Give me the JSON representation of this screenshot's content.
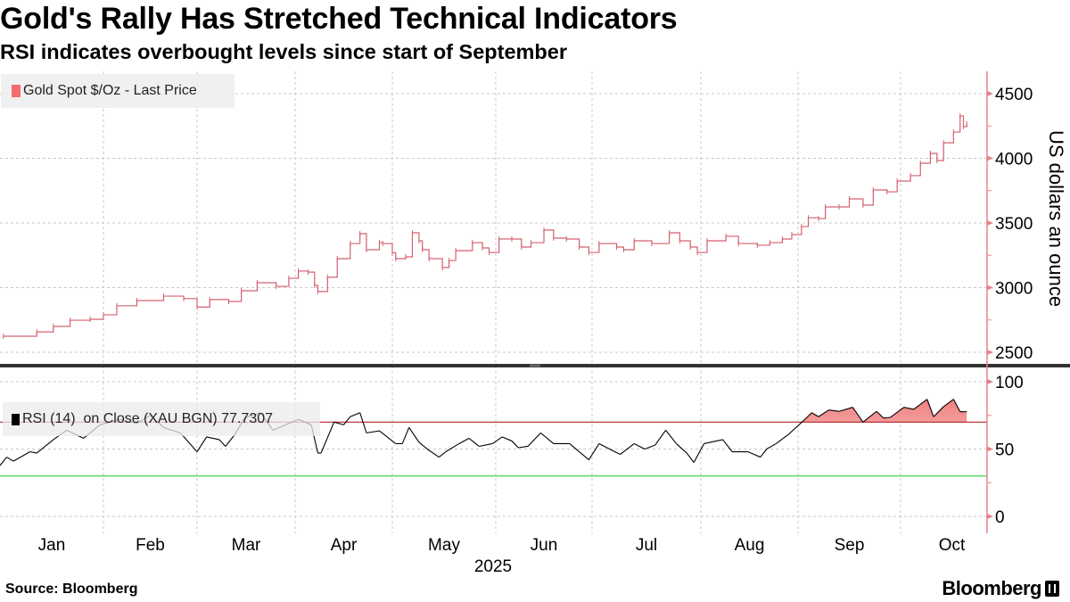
{
  "header": {
    "title": "Gold's Rally Has Stretched Technical Indicators",
    "subtitle": "RSI indicates overbought levels since start of September"
  },
  "footer": {
    "source": "Source: Bloomberg",
    "brand": "Bloomberg"
  },
  "colors": {
    "price_line": "#d4606f",
    "price_swatch": "#f26d6d",
    "rsi_line": "#000000",
    "overbought_line": "#b22222",
    "oversold_line": "#2ecc40",
    "rsi_fill": "#f4a3a3",
    "axis": "#e8828a",
    "grid": "#c8c8c8"
  },
  "chart_data": [
    {
      "type": "line",
      "title": "Gold Spot $/Oz - Last Price",
      "legend": "Gold Spot $/Oz - Last Price",
      "legend_placement": "top-left",
      "ylabel": "US dollars an ounce",
      "ylim": [
        2450,
        4600
      ],
      "yticks": [
        "4500",
        "4000",
        "3500",
        "3000",
        "2500"
      ],
      "ytick_values": [
        4500,
        4000,
        3500,
        3000,
        2500
      ],
      "grid": true,
      "x": [
        "2025-01-02",
        "2025-01-12",
        "2025-01-17",
        "2025-01-22",
        "2025-01-28",
        "2025-02-01",
        "2025-02-05",
        "2025-02-11",
        "2025-02-19",
        "2025-02-25",
        "2025-03-01",
        "2025-03-05",
        "2025-03-11",
        "2025-03-15",
        "2025-03-20",
        "2025-03-26",
        "2025-03-30",
        "2025-04-02",
        "2025-04-05",
        "2025-04-07",
        "2025-04-08",
        "2025-04-11",
        "2025-04-14",
        "2025-04-18",
        "2025-04-21",
        "2025-04-23",
        "2025-04-27",
        "2025-04-28",
        "2025-05-01",
        "2025-05-02",
        "2025-05-05",
        "2025-05-07",
        "2025-05-09",
        "2025-05-10",
        "2025-05-12",
        "2025-05-16",
        "2025-05-18",
        "2025-05-20",
        "2025-05-25",
        "2025-05-28",
        "2025-05-30",
        "2025-06-02",
        "2025-06-06",
        "2025-06-09",
        "2025-06-12",
        "2025-06-16",
        "2025-06-19",
        "2025-06-23",
        "2025-06-27",
        "2025-06-30",
        "2025-07-03",
        "2025-07-08",
        "2025-07-10",
        "2025-07-13",
        "2025-07-18",
        "2025-07-23",
        "2025-07-26",
        "2025-07-29",
        "2025-07-31",
        "2025-08-03",
        "2025-08-09",
        "2025-08-13",
        "2025-08-19",
        "2025-08-23",
        "2025-08-27",
        "2025-08-30",
        "2025-09-02",
        "2025-09-04",
        "2025-09-07",
        "2025-09-09",
        "2025-09-13",
        "2025-09-16",
        "2025-09-20",
        "2025-09-23",
        "2025-09-27",
        "2025-09-30",
        "2025-10-04",
        "2025-10-07",
        "2025-10-10",
        "2025-10-12",
        "2025-10-14",
        "2025-10-17",
        "2025-10-19",
        "2025-10-20",
        "2025-10-21"
      ],
      "values": [
        2624,
        2658,
        2700,
        2748,
        2755,
        2790,
        2860,
        2900,
        2934,
        2915,
        2850,
        2908,
        2893,
        2976,
        3038,
        3010,
        3072,
        3128,
        3120,
        3017,
        2970,
        3080,
        3224,
        3341,
        3417,
        3293,
        3348,
        3341,
        3270,
        3224,
        3238,
        3424,
        3362,
        3293,
        3224,
        3155,
        3210,
        3286,
        3348,
        3307,
        3272,
        3376,
        3376,
        3314,
        3348,
        3445,
        3383,
        3376,
        3314,
        3272,
        3341,
        3314,
        3293,
        3362,
        3341,
        3424,
        3362,
        3314,
        3272,
        3362,
        3397,
        3341,
        3328,
        3348,
        3376,
        3410,
        3472,
        3540,
        3534,
        3624,
        3624,
        3686,
        3638,
        3755,
        3741,
        3824,
        3866,
        3962,
        4038,
        3983,
        4120,
        4203,
        4328,
        4245,
        4266
      ]
    },
    {
      "type": "line",
      "title": "RSI (14) on Close (XAU BGN)",
      "legend": "RSI (14)  on Close (XAU BGN) 77.7307",
      "legend_placement": "top-left",
      "last_value": 77.7307,
      "ylim": [
        0,
        100
      ],
      "yticks": [
        "100",
        "50",
        "0"
      ],
      "ytick_values": [
        100,
        50,
        0
      ],
      "overbought": 70,
      "oversold": 30,
      "shaded_from": "2025-08-29",
      "x": [
        "2025-01-01",
        "2025-01-03",
        "2025-01-05",
        "2025-01-10",
        "2025-01-12",
        "2025-01-17",
        "2025-01-21",
        "2025-01-26",
        "2025-01-31",
        "2025-02-06",
        "2025-02-11",
        "2025-02-15",
        "2025-02-19",
        "2025-02-24",
        "2025-03-01",
        "2025-03-04",
        "2025-03-08",
        "2025-03-10",
        "2025-03-13",
        "2025-03-16",
        "2025-03-21",
        "2025-03-25",
        "2025-03-29",
        "2025-04-02",
        "2025-04-06",
        "2025-04-08",
        "2025-04-09",
        "2025-04-13",
        "2025-04-16",
        "2025-04-18",
        "2025-04-21",
        "2025-04-23",
        "2025-04-27",
        "2025-05-02",
        "2025-05-04",
        "2025-05-06",
        "2025-05-09",
        "2025-05-12",
        "2025-05-15",
        "2025-05-17",
        "2025-05-21",
        "2025-05-24",
        "2025-05-27",
        "2025-05-31",
        "2025-06-03",
        "2025-06-06",
        "2025-06-08",
        "2025-06-11",
        "2025-06-15",
        "2025-06-19",
        "2025-06-24",
        "2025-06-27",
        "2025-06-30",
        "2025-07-03",
        "2025-07-06",
        "2025-07-09",
        "2025-07-13",
        "2025-07-16",
        "2025-07-19",
        "2025-07-22",
        "2025-07-25",
        "2025-07-28",
        "2025-07-30",
        "2025-08-02",
        "2025-08-06",
        "2025-08-08",
        "2025-08-11",
        "2025-08-16",
        "2025-08-20",
        "2025-08-22",
        "2025-08-25",
        "2025-08-29",
        "2025-09-03",
        "2025-09-05",
        "2025-09-07",
        "2025-09-10",
        "2025-09-13",
        "2025-09-17",
        "2025-09-20",
        "2025-09-24",
        "2025-09-26",
        "2025-09-28",
        "2025-10-02",
        "2025-10-05",
        "2025-10-09",
        "2025-10-11",
        "2025-10-14",
        "2025-10-17",
        "2025-10-19",
        "2025-10-21"
      ],
      "values": [
        37.7,
        44,
        41,
        48,
        47,
        57,
        64,
        58,
        68,
        72,
        69,
        75,
        66,
        62,
        48,
        59,
        57,
        52,
        61,
        73,
        77,
        64,
        68,
        72,
        68,
        47,
        47,
        70,
        68,
        74,
        77,
        62,
        63.5,
        54,
        54,
        66,
        55,
        49,
        44,
        48,
        54,
        58,
        52,
        54,
        59,
        56,
        51,
        52,
        62,
        54,
        54,
        48,
        42,
        54,
        50,
        46,
        54,
        50,
        53,
        64,
        54,
        47,
        40,
        54,
        56,
        57,
        48,
        48,
        44,
        50,
        54,
        61,
        72,
        77,
        74,
        79,
        78,
        81,
        70,
        78,
        73,
        73.5,
        81,
        79.5,
        87,
        74,
        81.5,
        87,
        77.7307,
        77.7307
      ]
    }
  ],
  "xaxis": {
    "months": [
      "Jan",
      "Feb",
      "Mar",
      "Apr",
      "May",
      "Jun",
      "Jul",
      "Aug",
      "Sep",
      "Oct"
    ],
    "year": "2025"
  }
}
